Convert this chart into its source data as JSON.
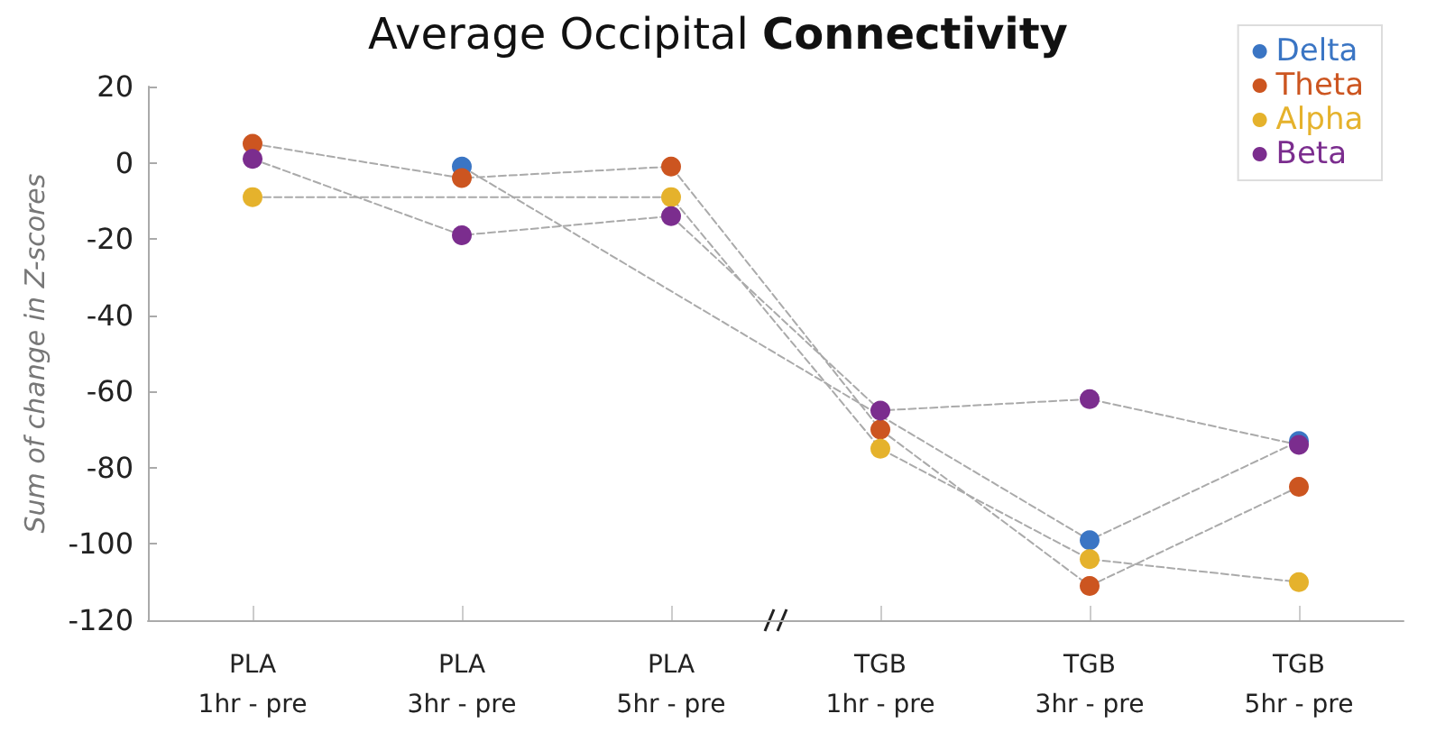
{
  "chart_data": {
    "type": "line",
    "title": "Average Occipital Connectivity",
    "ylabel": "Sum of change in Z-scores",
    "categories": [
      "PLA\n1hr - pre",
      "PLA\n3hr - pre",
      "PLA\n5hr - pre",
      "TGB\n1hr - pre",
      "TGB\n3hr - pre",
      "TGB\n5hr - pre"
    ],
    "series": [
      {
        "name": "Delta",
        "color": "#3a75c4",
        "values": [
          null,
          -1,
          null,
          null,
          -99,
          -73
        ]
      },
      {
        "name": "Theta",
        "color": "#cc5520",
        "values": [
          5,
          -4,
          -1,
          -70,
          -111,
          -85
        ]
      },
      {
        "name": "Alpha",
        "color": "#e5b22c",
        "values": [
          -9,
          null,
          -9,
          -75,
          -104,
          -110
        ]
      },
      {
        "name": "Beta",
        "color": "#7b2d8e",
        "values": [
          1,
          -19,
          -14,
          -65,
          -62,
          -74
        ]
      }
    ],
    "ylim": [
      -120,
      20
    ],
    "yticks": [
      -120,
      -100,
      -80,
      -60,
      -40,
      -20,
      0,
      20
    ],
    "grid": false,
    "legend": "top right",
    "marker": "circle",
    "line_style": "dashed"
  }
}
